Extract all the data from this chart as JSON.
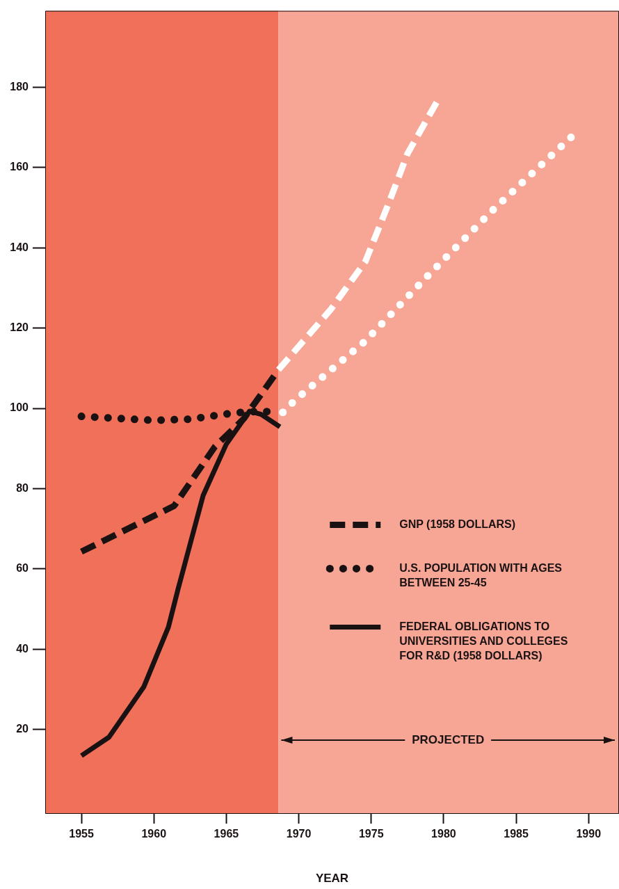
{
  "chart_data": {
    "type": "line",
    "xlabel": "YEAR",
    "xlim": [
      1952.5,
      1992.1
    ],
    "xticks": [
      1955,
      1960,
      1965,
      1970,
      1975,
      1980,
      1985,
      1990
    ],
    "ylim": [
      -1,
      199
    ],
    "yticks": [
      20,
      40,
      60,
      80,
      100,
      120,
      140,
      160,
      180
    ],
    "grid": false,
    "legend": "right",
    "marker": "none",
    "bands": [
      {
        "axis": "x",
        "from": 1952.5,
        "to": 1968.6,
        "color": "#f0705a"
      },
      {
        "axis": "x",
        "from": 1968.6,
        "to": 1992.1,
        "label": "PROJECTED",
        "color": "#f7a595"
      }
    ],
    "series": [
      {
        "name": "GNP (1958 DOLLARS)",
        "color": "#1a1212",
        "line_style": "dashed",
        "x": [
          1955,
          1961.4,
          1964.2,
          1966.2,
          1968.6
        ],
        "values": [
          64.3,
          75.7,
          90.4,
          97.4,
          109.6
        ]
      },
      {
        "name": "U.S. POPULATION WITH AGES BETWEEN 25-45",
        "color": "#1a1212",
        "line_style": "dotted",
        "x": [
          1955,
          1957.5,
          1960,
          1962.5,
          1965,
          1966.5,
          1968.7
        ],
        "values": [
          98,
          97.5,
          97,
          97.3,
          98.6,
          99.2,
          99.2
        ]
      },
      {
        "name": "FEDERAL OBLIGATIONS TO UNIVERSITIES AND COLLEGES FOR R&D (1958 DOLLARS)",
        "color": "#1a1212",
        "line_style": "solid",
        "x": [
          1955,
          1956.9,
          1959.3,
          1961,
          1961.7,
          1963.4,
          1965,
          1966.6,
          1967.4,
          1968.7
        ],
        "values": [
          13.5,
          18.1,
          30.6,
          45.5,
          55.4,
          78.3,
          91.1,
          99.3,
          98.5,
          95.4
        ]
      },
      {
        "color": "#ffffff",
        "line_style": "dashed",
        "x": [
          1968.6,
          1972.2,
          1974.6,
          1976.2,
          1977.5,
          1979.7
        ],
        "values": [
          109.6,
          124.6,
          136.6,
          151,
          163.4,
          177.4
        ]
      },
      {
        "color": "#ffffff",
        "line_style": "dotted",
        "x": [
          1968.9,
          1969.7,
          1974.6,
          1978.9,
          1983.4,
          1987.2,
          1989
        ],
        "values": [
          99,
          101.9,
          116.8,
          133,
          149.4,
          162.2,
          168.2
        ]
      }
    ]
  }
}
